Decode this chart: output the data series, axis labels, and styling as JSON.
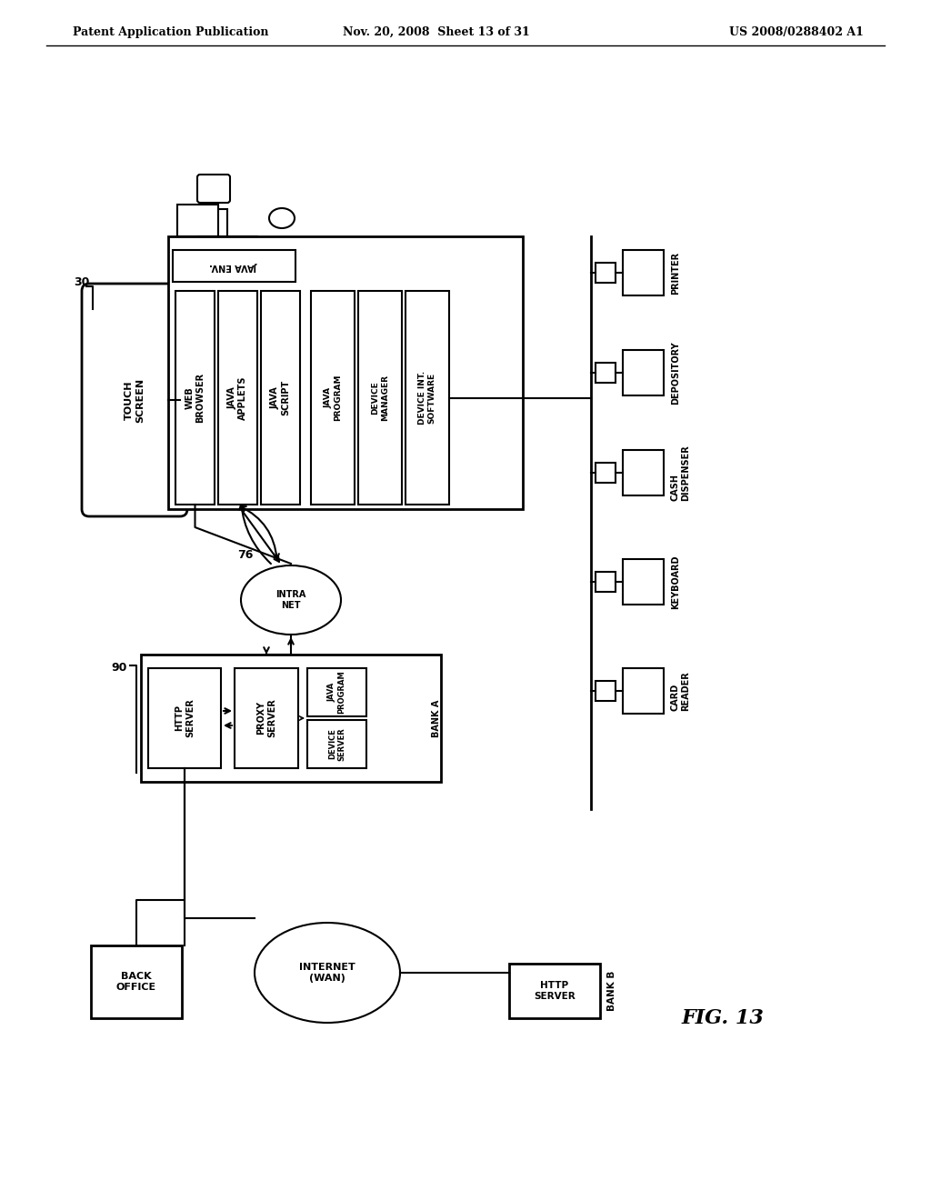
{
  "title_left": "Patent Application Publication",
  "title_center": "Nov. 20, 2008  Sheet 13 of 31",
  "title_right": "US 2008/0288402 A1",
  "fig_label": "FIG. 13",
  "background_color": "#ffffff",
  "text_color": "#000000",
  "line_color": "#000000"
}
